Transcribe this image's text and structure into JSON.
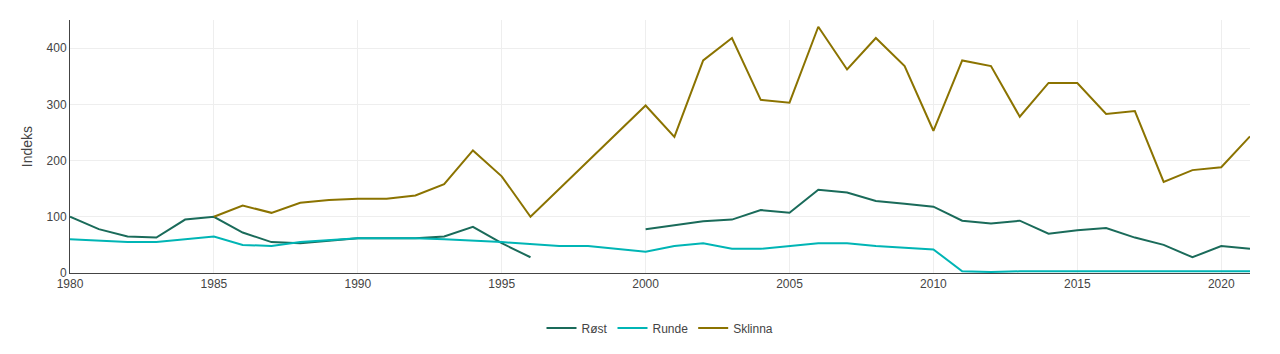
{
  "chart_data": {
    "type": "line",
    "y_label": "Indeks",
    "xlim": [
      1980,
      2021
    ],
    "ylim": [
      0,
      450
    ],
    "xticks": [
      1980,
      1985,
      1990,
      1995,
      2000,
      2005,
      2010,
      2015,
      2020
    ],
    "yticks": [
      0,
      100,
      200,
      300,
      400
    ],
    "grid": true,
    "legend": "bottom",
    "series": [
      {
        "name": "Røst",
        "color": "#1a6b5a",
        "x": [
          1980,
          1981,
          1982,
          1983,
          1984,
          1985,
          1986,
          1987,
          1988,
          1989,
          1990,
          1991,
          1992,
          1993,
          1994,
          1995,
          1996,
          1997,
          1998,
          1999,
          2000,
          2001,
          2002,
          2003,
          2004,
          2005,
          2006,
          2007,
          2008,
          2009,
          2010,
          2011,
          2012,
          2013,
          2014,
          2015,
          2016,
          2017,
          2018,
          2019,
          2020,
          2021
        ],
        "values": [
          100,
          78,
          65,
          63,
          95,
          100,
          72,
          55,
          53,
          58,
          62,
          62,
          62,
          65,
          82,
          53,
          28,
          null,
          null,
          null,
          78,
          85,
          92,
          95,
          112,
          107,
          148,
          143,
          128,
          123,
          118,
          93,
          88,
          93,
          70,
          76,
          80,
          63,
          50,
          28,
          48,
          43
        ]
      },
      {
        "name": "Runde",
        "color": "#00b5b5",
        "x": [
          1980,
          1981,
          1982,
          1983,
          1984,
          1985,
          1986,
          1987,
          1988,
          1989,
          1990,
          1991,
          1992,
          1993,
          1994,
          1995,
          1997,
          1998,
          2000,
          2001,
          2002,
          2003,
          2004,
          2005,
          2006,
          2007,
          2008,
          2009,
          2010,
          2011,
          2012,
          2013,
          2014,
          2015,
          2016,
          2017,
          2018,
          2019,
          2020,
          2021
        ],
        "values": [
          60,
          58,
          55,
          55,
          60,
          65,
          50,
          48,
          55,
          58,
          62,
          62,
          62,
          60,
          58,
          55,
          48,
          48,
          38,
          48,
          53,
          43,
          43,
          48,
          53,
          53,
          48,
          45,
          42,
          3,
          2,
          3,
          3,
          3,
          3,
          3,
          3,
          3,
          3,
          3
        ]
      },
      {
        "name": "Sklinna",
        "color": "#8B7300",
        "x": [
          1985,
          1986,
          1987,
          1988,
          1989,
          1990,
          1991,
          1992,
          1993,
          1994,
          1995,
          1996,
          2000,
          2001,
          2002,
          2003,
          2004,
          2005,
          2006,
          2007,
          2008,
          2009,
          2010,
          2011,
          2012,
          2013,
          2014,
          2015,
          2016,
          2017,
          2018,
          2019,
          2020,
          2021
        ],
        "values": [
          100,
          120,
          107,
          125,
          130,
          132,
          132,
          138,
          158,
          218,
          172,
          100,
          298,
          242,
          378,
          418,
          308,
          303,
          438,
          362,
          418,
          368,
          253,
          378,
          368,
          278,
          338,
          338,
          283,
          288,
          162,
          183,
          188,
          243
        ]
      }
    ]
  }
}
